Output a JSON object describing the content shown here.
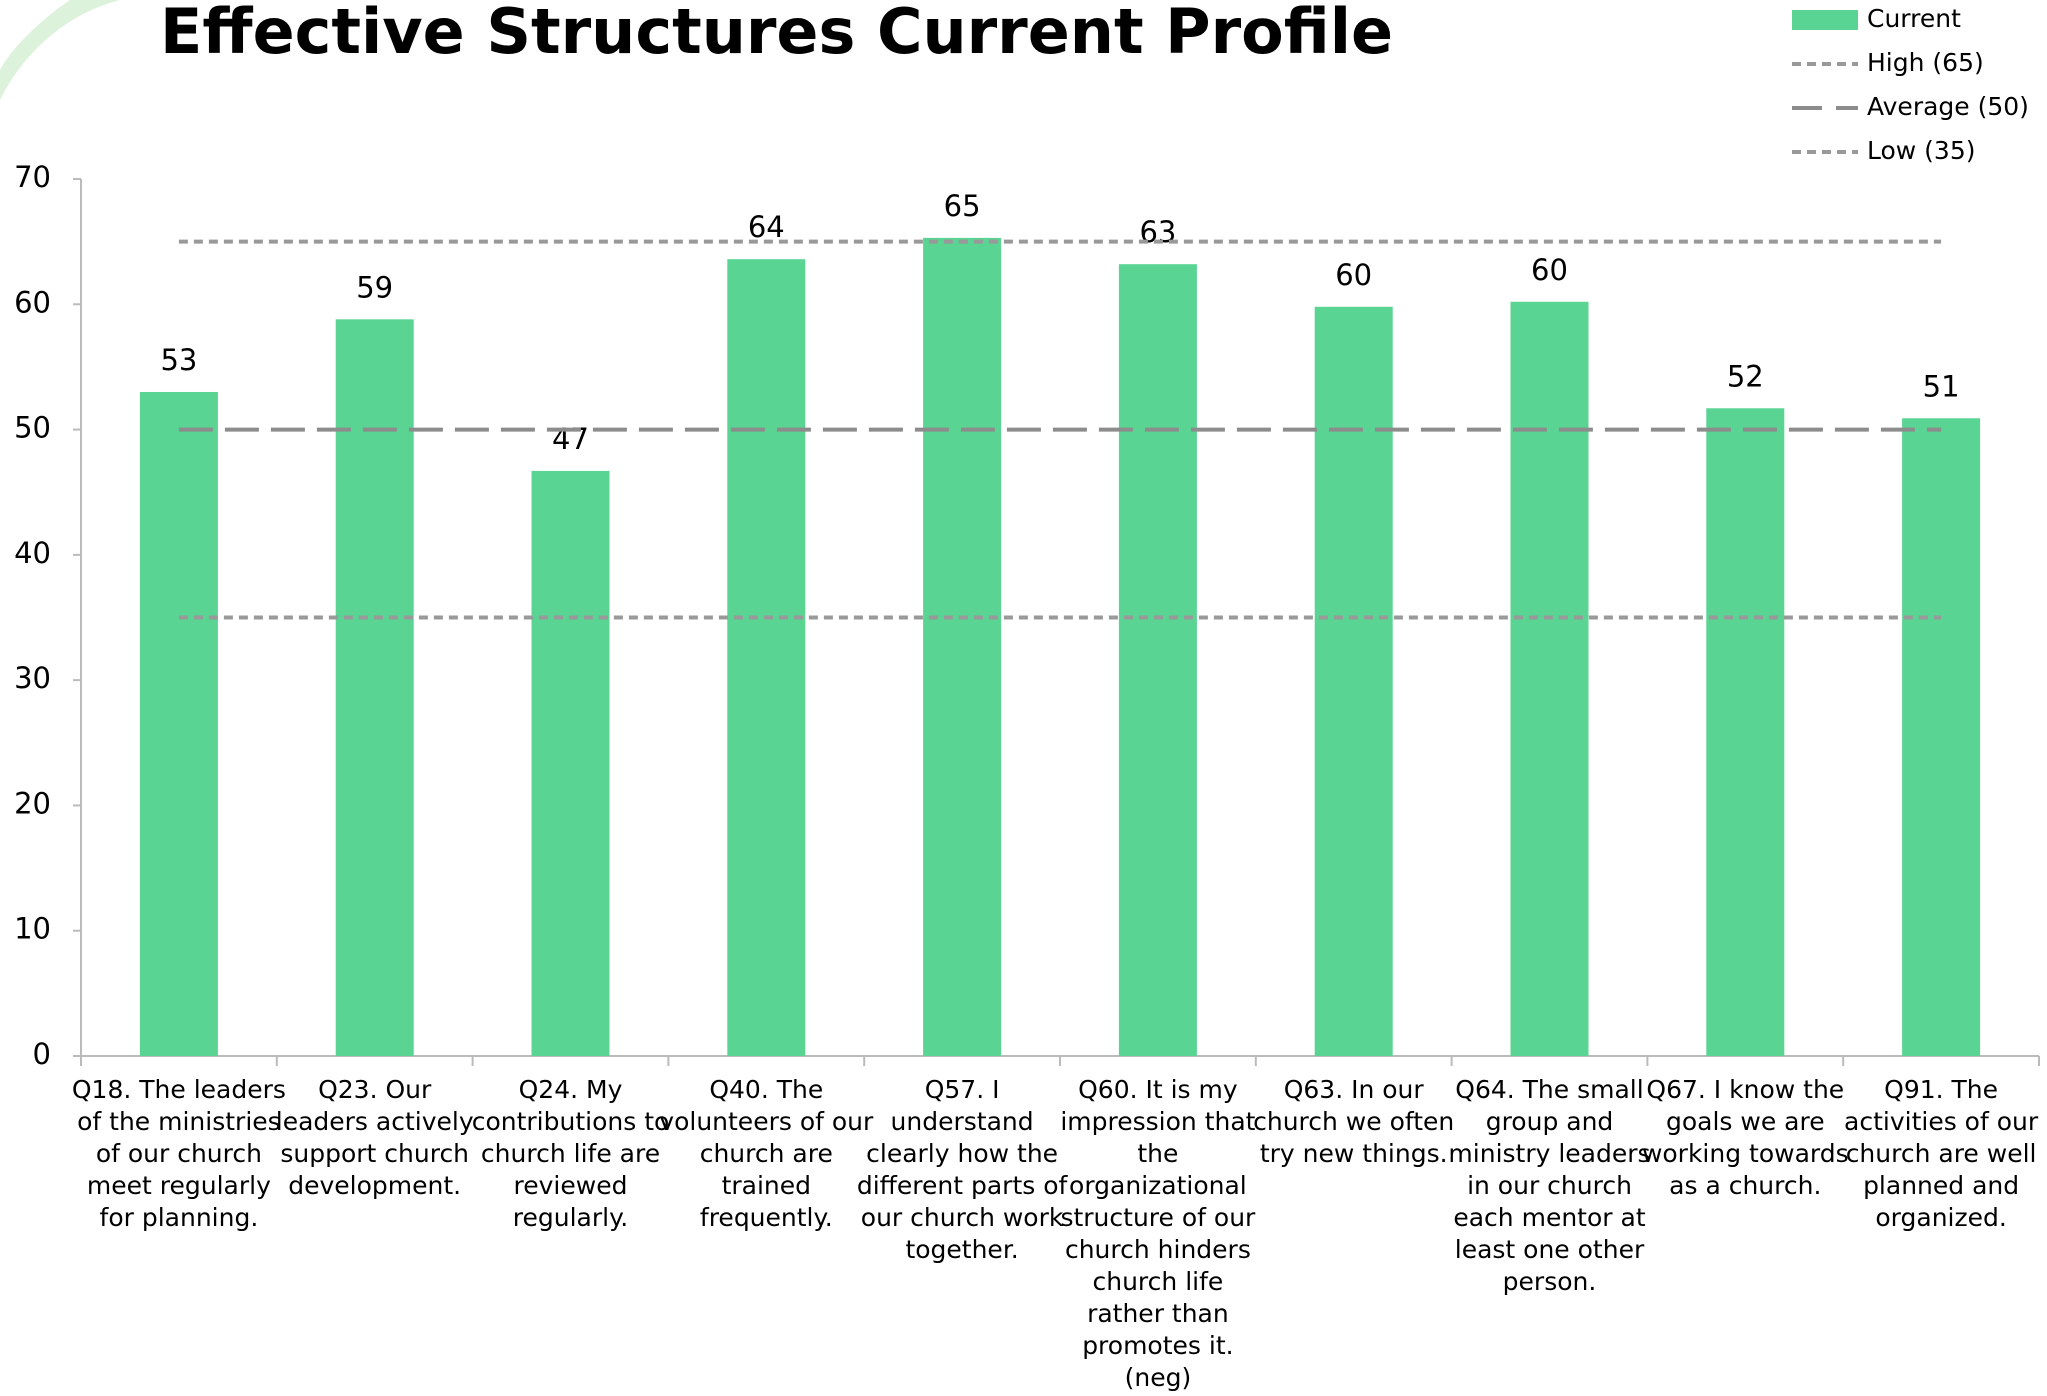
{
  "chart_data": {
    "type": "bar",
    "title": "Effective Structures Current Profile",
    "categories": [
      [
        "Q18. The leaders",
        "of the ministries",
        "of our church",
        "meet regularly",
        "for planning."
      ],
      [
        "Q23. Our",
        "leaders actively",
        "support church",
        "development."
      ],
      [
        "Q24. My",
        "contributions to",
        "church life are",
        "reviewed",
        "regularly."
      ],
      [
        "Q40. The",
        "volunteers of our",
        "church are",
        "trained",
        "frequently."
      ],
      [
        "Q57. I",
        "understand",
        "clearly how the",
        "different parts of",
        "our church work",
        "together."
      ],
      [
        "Q60. It is my",
        "impression that",
        "the",
        "organizational",
        "structure of our",
        "church hinders",
        "church life",
        "rather than",
        "promotes it.",
        "(neg)"
      ],
      [
        "Q63. In our",
        "church we often",
        "try new things."
      ],
      [
        "Q64. The small",
        "group and",
        "ministry leaders",
        "in our church",
        "each mentor at",
        "least one other",
        "person."
      ],
      [
        "Q67. I know the",
        "goals we are",
        "working towards",
        "as a church."
      ],
      [
        "Q91. The",
        "activities of our",
        "church are well",
        "planned and",
        "organized."
      ]
    ],
    "series": [
      {
        "name": "Current",
        "color": "#5ad492",
        "values": [
          53.0,
          58.8,
          46.7,
          63.6,
          65.3,
          63.2,
          59.8,
          60.2,
          51.7,
          50.9
        ],
        "value_labels": [
          "53",
          "59",
          "47",
          "64",
          "65",
          "63",
          "60",
          "60",
          "52",
          "51"
        ]
      }
    ],
    "reference_lines": [
      {
        "name": "High (65)",
        "value": 65,
        "color": "#999999",
        "dash": "short"
      },
      {
        "name": "Average (50)",
        "value": 50,
        "color": "#8c8c8c",
        "dash": "long"
      },
      {
        "name": "Low (35)",
        "value": 35,
        "color": "#999999",
        "dash": "short"
      }
    ],
    "ylim": [
      0,
      70
    ],
    "yticks": [
      0,
      10,
      20,
      30,
      40,
      50,
      60,
      70
    ],
    "grid": false,
    "legend": "top-right"
  }
}
